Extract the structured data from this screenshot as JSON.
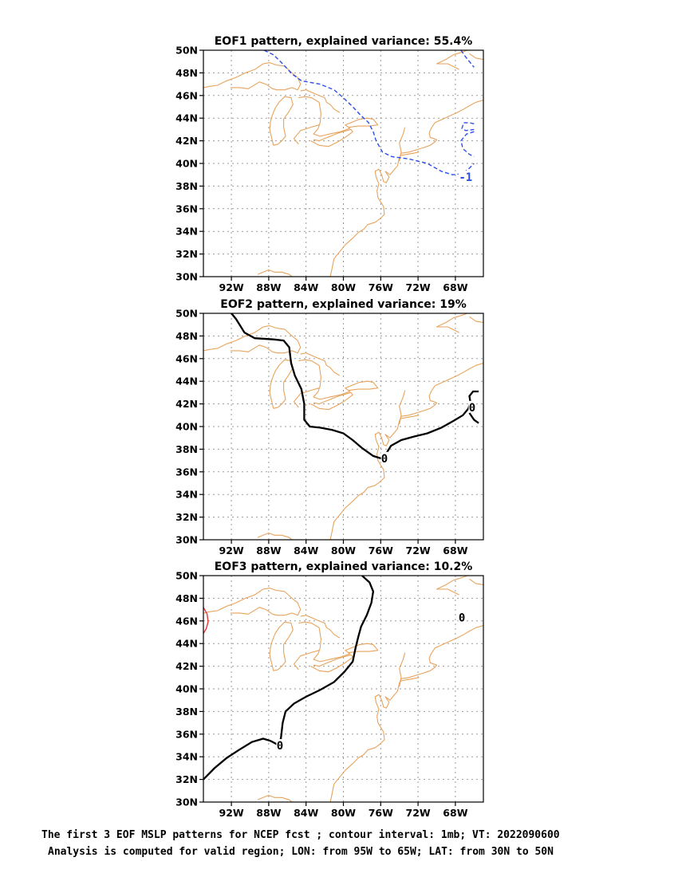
{
  "panels": [
    {
      "title": "EOF1 pattern, explained variance: 55.4%",
      "contours": [
        {
          "level": "-1",
          "color": "#2a4ee8",
          "style": "dashed",
          "lines": [
            [
              [
                -88.5,
                50
              ],
              [
                -87.5,
                49.6
              ],
              [
                -86.5,
                48.8
              ],
              [
                -85.5,
                47.9
              ],
              [
                -84.5,
                47.3
              ],
              [
                -82.5,
                47.0
              ],
              [
                -81,
                46.5
              ],
              [
                -80,
                45.8
              ],
              [
                -79,
                45
              ],
              [
                -78.2,
                44.3
              ],
              [
                -77.3,
                43.6
              ],
              [
                -76.8,
                42.8
              ],
              [
                -76.5,
                42
              ],
              [
                -75.8,
                41
              ],
              [
                -74.8,
                40.6
              ],
              [
                -73,
                40.4
              ],
              [
                -71,
                40
              ],
              [
                -69.5,
                39.3
              ],
              [
                -68.3,
                39
              ],
              [
                -67.3,
                39.1
              ],
              [
                -66.6,
                39.5
              ],
              [
                -66,
                40.0
              ]
            ],
            [
              [
                -66,
                42.8
              ],
              [
                -66.8,
                42.6
              ],
              [
                -67.4,
                42
              ],
              [
                -67.2,
                41.3
              ],
              [
                -66.5,
                40.8
              ],
              [
                -66,
                40.6
              ]
            ],
            [
              [
                -66,
                43.5
              ],
              [
                -66.5,
                43.6
              ],
              [
                -67.1,
                43.6
              ],
              [
                -67.3,
                43.1
              ],
              [
                -66.9,
                42.9
              ],
              [
                -66,
                43.0
              ]
            ],
            [
              [
                -67.4,
                50
              ],
              [
                -66.9,
                49.4
              ],
              [
                -66.4,
                48.9
              ],
              [
                -66,
                48.5
              ]
            ]
          ],
          "labels": [
            {
              "text": "-1",
              "lon": -66.9,
              "lat": 38.8
            }
          ]
        }
      ]
    },
    {
      "title": "EOF2 pattern, explained variance: 19%",
      "contours": [
        {
          "level": "0",
          "color": "#000000",
          "style": "solid",
          "lines": [
            [
              [
                -92,
                50
              ],
              [
                -91.5,
                49.5
              ],
              [
                -90.6,
                48.3
              ],
              [
                -89.5,
                47.8
              ],
              [
                -87.5,
                47.7
              ],
              [
                -86.4,
                47.6
              ],
              [
                -85.8,
                47
              ],
              [
                -85.6,
                45.6
              ],
              [
                -85.2,
                44.5
              ],
              [
                -84.5,
                43.3
              ],
              [
                -84.2,
                42
              ],
              [
                -84.2,
                40.6
              ],
              [
                -83.6,
                40
              ],
              [
                -82.5,
                39.9
              ],
              [
                -81.2,
                39.7
              ],
              [
                -80,
                39.4
              ],
              [
                -79,
                38.8
              ],
              [
                -78,
                38.1
              ],
              [
                -76.8,
                37.4
              ],
              [
                -76,
                37.2
              ],
              [
                -75.5,
                37.5
              ],
              [
                -74.9,
                38.3
              ],
              [
                -73.8,
                38.8
              ],
              [
                -72.5,
                39.1
              ],
              [
                -71,
                39.4
              ],
              [
                -69.5,
                39.9
              ],
              [
                -68.2,
                40.5
              ],
              [
                -67.2,
                41.0
              ],
              [
                -66.6,
                41.6
              ],
              [
                -66.4,
                42.2
              ],
              [
                -66.5,
                42.7
              ],
              [
                -66.1,
                43.1
              ],
              [
                -65.5,
                43.1
              ]
            ],
            [
              [
                -66.5,
                41.2
              ],
              [
                -66,
                40.6
              ],
              [
                -65.5,
                40.3
              ]
            ]
          ],
          "labels": [
            {
              "text": "0",
              "lon": -75.6,
              "lat": 37.2
            },
            {
              "text": "0",
              "lon": -66.2,
              "lat": 41.7
            }
          ]
        }
      ]
    },
    {
      "title": "EOF3 pattern, explained variance: 10.2%",
      "contours": [
        {
          "level": "0",
          "color": "#000000",
          "style": "solid",
          "lines": [
            [
              [
                -95,
                32
              ],
              [
                -93.8,
                33
              ],
              [
                -92.5,
                33.9
              ],
              [
                -91.2,
                34.6
              ],
              [
                -89.8,
                35.3
              ],
              [
                -88.6,
                35.6
              ],
              [
                -87.8,
                35.4
              ],
              [
                -87.1,
                35.1
              ],
              [
                -86.7,
                35.6
              ],
              [
                -86.5,
                37.0
              ],
              [
                -86.2,
                38.0
              ],
              [
                -85.3,
                38.7
              ],
              [
                -84,
                39.3
              ],
              [
                -82.5,
                39.9
              ],
              [
                -81,
                40.6
              ],
              [
                -79.9,
                41.5
              ],
              [
                -79,
                42.4
              ],
              [
                -78.7,
                43.6
              ],
              [
                -78.4,
                44.6
              ],
              [
                -78.1,
                45.5
              ],
              [
                -77.5,
                46.5
              ],
              [
                -77,
                47.6
              ],
              [
                -76.8,
                48.6
              ],
              [
                -77.2,
                49.4
              ],
              [
                -78,
                50
              ]
            ]
          ],
          "labels": [
            {
              "text": "0",
              "lon": -86.8,
              "lat": 35.0
            },
            {
              "text": "0",
              "lon": -67.3,
              "lat": 46.3
            }
          ]
        },
        {
          "level": "",
          "color": "#e8323c",
          "style": "solid",
          "lines": [
            [
              [
                -95,
                47.2
              ],
              [
                -94.6,
                46.6
              ],
              [
                -94.5,
                45.9
              ],
              [
                -94.7,
                45.3
              ],
              [
                -95,
                44.9
              ]
            ]
          ],
          "labels": []
        }
      ]
    }
  ],
  "axes": {
    "lon_ticks": [
      "92W",
      "88W",
      "84W",
      "80W",
      "76W",
      "72W",
      "68W"
    ],
    "lon_tick_values": [
      -92,
      -88,
      -84,
      -80,
      -76,
      -72,
      -68
    ],
    "lat_ticks": [
      "30N",
      "32N",
      "34N",
      "36N",
      "38N",
      "40N",
      "42N",
      "44N",
      "46N",
      "48N",
      "50N"
    ],
    "lat_tick_values": [
      30,
      32,
      34,
      36,
      38,
      40,
      42,
      44,
      46,
      48,
      50
    ],
    "lon_range": [
      -95,
      -65
    ],
    "lat_range": [
      30,
      50
    ],
    "grid": true
  },
  "coastline_color": "#e8a35c",
  "coastlines": [
    [
      [
        -89.2,
        30.2
      ],
      [
        -88.6,
        30.4
      ],
      [
        -88.0,
        30.6
      ],
      [
        -87.4,
        30.4
      ],
      [
        -86.6,
        30.4
      ],
      [
        -85.8,
        30.2
      ],
      [
        -85.2,
        29.8
      ]
    ],
    [
      [
        -81.4,
        30
      ],
      [
        -81.2,
        30.8
      ],
      [
        -81.0,
        31.6
      ],
      [
        -80.4,
        32.2
      ],
      [
        -79.8,
        32.8
      ],
      [
        -79.0,
        33.4
      ],
      [
        -78.4,
        33.9
      ],
      [
        -77.8,
        34.2
      ],
      [
        -77.4,
        34.6
      ],
      [
        -76.6,
        34.8
      ],
      [
        -76.1,
        35.1
      ],
      [
        -75.6,
        35.5
      ],
      [
        -75.7,
        36.2
      ],
      [
        -76.0,
        36.6
      ],
      [
        -76.3,
        37.0
      ],
      [
        -76.4,
        37.6
      ],
      [
        -76.2,
        38.2
      ],
      [
        -76.5,
        38.8
      ],
      [
        -76.6,
        39.3
      ],
      [
        -76.2,
        39.5
      ],
      [
        -75.9,
        39.0
      ],
      [
        -75.7,
        38.4
      ],
      [
        -75.4,
        38.3
      ],
      [
        -75.1,
        38.8
      ],
      [
        -75.5,
        39.3
      ],
      [
        -75.0,
        39.0
      ],
      [
        -74.7,
        39.3
      ],
      [
        -74.2,
        39.8
      ],
      [
        -74.0,
        40.5
      ],
      [
        -73.8,
        40.9
      ],
      [
        -73.0,
        41.0
      ],
      [
        -72.2,
        41.2
      ],
      [
        -71.4,
        41.4
      ],
      [
        -70.7,
        41.6
      ],
      [
        -70.2,
        41.9
      ],
      [
        -70.0,
        42.1
      ],
      [
        -70.7,
        42.3
      ],
      [
        -70.8,
        42.7
      ],
      [
        -70.6,
        43.1
      ],
      [
        -70.2,
        43.6
      ],
      [
        -69.4,
        43.9
      ],
      [
        -68.6,
        44.2
      ],
      [
        -67.8,
        44.5
      ],
      [
        -67.1,
        44.8
      ],
      [
        -66.5,
        45.1
      ],
      [
        -65.8,
        45.4
      ],
      [
        -65,
        45.6
      ]
    ],
    [
      [
        -73.9,
        40.7
      ],
      [
        -73.2,
        40.8
      ],
      [
        -72.5,
        40.9
      ],
      [
        -71.9,
        41.0
      ]
    ],
    [
      [
        -67.6,
        48.3
      ],
      [
        -68.8,
        48.8
      ],
      [
        -70.0,
        48.8
      ],
      [
        -69.0,
        49.2
      ],
      [
        -68.2,
        49.6
      ],
      [
        -67.4,
        49.8
      ],
      [
        -66.7,
        50.0
      ]
    ],
    [
      [
        -65,
        49.2
      ],
      [
        -65.8,
        49.3
      ],
      [
        -66.5,
        49.7
      ]
    ],
    [
      [
        -95,
        46.7
      ],
      [
        -94.4,
        46.8
      ],
      [
        -93.5,
        46.9
      ],
      [
        -92.5,
        47.3
      ],
      [
        -91.5,
        47.6
      ],
      [
        -90.5,
        48.0
      ],
      [
        -89.5,
        48.3
      ],
      [
        -88.6,
        48.8
      ],
      [
        -87.9,
        48.9
      ],
      [
        -87.2,
        48.7
      ],
      [
        -86.3,
        48.6
      ],
      [
        -85.5,
        48.0
      ],
      [
        -84.9,
        47.6
      ],
      [
        -84.6,
        47.0
      ],
      [
        -84.9,
        46.5
      ],
      [
        -85.5,
        46.7
      ],
      [
        -86.3,
        46.5
      ],
      [
        -87.1,
        46.5
      ],
      [
        -87.6,
        46.6
      ],
      [
        -88.3,
        47.0
      ],
      [
        -89.0,
        47.2
      ],
      [
        -90.2,
        46.6
      ],
      [
        -91.1,
        46.7
      ],
      [
        -92.1,
        46.7
      ]
    ],
    [
      [
        -87.5,
        41.6
      ],
      [
        -87.7,
        42.3
      ],
      [
        -87.9,
        43.0
      ],
      [
        -87.8,
        43.7
      ],
      [
        -87.6,
        44.3
      ],
      [
        -87.3,
        44.9
      ],
      [
        -86.9,
        45.4
      ],
      [
        -86.3,
        45.9
      ],
      [
        -85.6,
        45.8
      ],
      [
        -85.4,
        45.2
      ],
      [
        -85.9,
        44.5
      ],
      [
        -86.4,
        43.9
      ],
      [
        -86.4,
        43.2
      ],
      [
        -86.2,
        42.4
      ],
      [
        -86.6,
        42.0
      ],
      [
        -87.0,
        41.7
      ],
      [
        -87.5,
        41.6
      ]
    ],
    [
      [
        -84.8,
        45.8
      ],
      [
        -84.1,
        45.9
      ],
      [
        -83.4,
        45.8
      ],
      [
        -82.6,
        45.4
      ],
      [
        -82.4,
        44.4
      ],
      [
        -82.5,
        43.6
      ],
      [
        -82.7,
        43.1
      ],
      [
        -83.2,
        42.6
      ],
      [
        -82.5,
        42.4
      ],
      [
        -81.5,
        42.6
      ],
      [
        -80.3,
        42.8
      ],
      [
        -79.3,
        43.1
      ],
      [
        -79.8,
        43.4
      ],
      [
        -79.2,
        43.6
      ],
      [
        -78.3,
        43.9
      ],
      [
        -77.4,
        44.0
      ],
      [
        -76.8,
        43.9
      ],
      [
        -76.3,
        43.4
      ],
      [
        -77.2,
        43.3
      ],
      [
        -78.4,
        43.3
      ],
      [
        -79.4,
        43.2
      ]
    ],
    [
      [
        -80.4,
        44.5
      ],
      [
        -81.0,
        44.8
      ],
      [
        -81.4,
        45.2
      ],
      [
        -81.8,
        45.4
      ],
      [
        -82.0,
        45.8
      ],
      [
        -82.9,
        46.1
      ],
      [
        -84.0,
        46.5
      ],
      [
        -84.6,
        46.4
      ]
    ],
    [
      [
        -83.5,
        42.0
      ],
      [
        -82.6,
        41.6
      ],
      [
        -81.6,
        41.5
      ],
      [
        -80.6,
        41.9
      ],
      [
        -79.8,
        42.3
      ],
      [
        -79.0,
        42.8
      ],
      [
        -79.2,
        43.0
      ],
      [
        -80.5,
        42.7
      ],
      [
        -81.7,
        42.3
      ],
      [
        -82.6,
        42.0
      ],
      [
        -83.2,
        42.1
      ]
    ],
    [
      [
        -84.8,
        41.7
      ],
      [
        -85.3,
        42.2
      ],
      [
        -84.6,
        42.9
      ],
      [
        -83.5,
        43.2
      ],
      [
        -82.6,
        43.4
      ]
    ],
    [
      [
        -74.0,
        40.2
      ],
      [
        -73.8,
        41.0
      ],
      [
        -74.0,
        41.8
      ],
      [
        -73.6,
        42.6
      ],
      [
        -73.4,
        43.2
      ]
    ]
  ],
  "footer": {
    "line1": "The first 3 EOF MSLP patterns for NCEP fcst ; contour interval: 1mb; VT: 2022090600",
    "line2": "Analysis is computed for valid region; LON: from 95W to 65W; LAT: from 30N to 50N"
  }
}
